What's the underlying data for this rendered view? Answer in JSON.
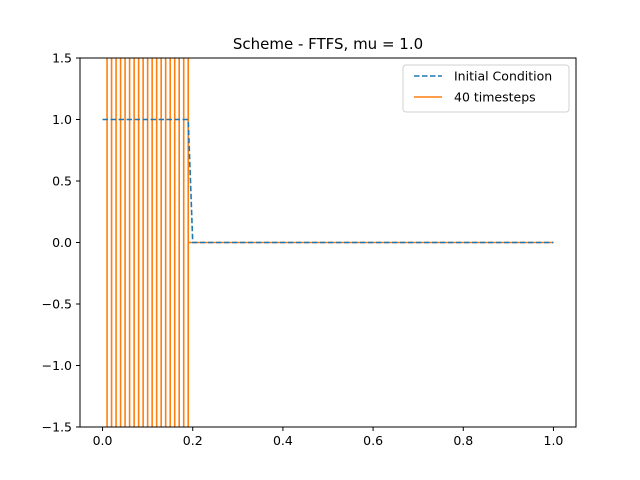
{
  "chart_data": {
    "type": "line",
    "title": "Scheme - FTFS, mu = 1.0",
    "xlabel": "",
    "ylabel": "",
    "xlim": [
      -0.05,
      1.05
    ],
    "ylim": [
      -1.5,
      1.5
    ],
    "xticks": [
      0.0,
      0.2,
      0.4,
      0.6,
      0.8,
      1.0
    ],
    "xtick_labels": [
      "0.0",
      "0.2",
      "0.4",
      "0.6",
      "0.8",
      "1.0"
    ],
    "yticks": [
      -1.5,
      -1.0,
      -0.5,
      0.0,
      0.5,
      1.0,
      1.5
    ],
    "ytick_labels": [
      "−1.5",
      "−1.0",
      "−0.5",
      "0.0",
      "0.5",
      "1.0",
      "1.5"
    ],
    "grid": false,
    "legend_position": "top-right",
    "series": [
      {
        "name": "Initial Condition",
        "style": "dashed",
        "color": "#1f77b4",
        "x": [
          0.0,
          0.19,
          0.2,
          1.0
        ],
        "y": [
          1.0,
          1.0,
          0.0,
          0.0
        ]
      },
      {
        "name": "40 timesteps",
        "style": "solid",
        "color": "#ff7f0e",
        "oscillation_x": [
          0.01,
          0.02,
          0.03,
          0.04,
          0.05,
          0.06,
          0.07,
          0.08,
          0.09,
          0.1,
          0.11,
          0.12,
          0.13,
          0.14,
          0.15,
          0.16,
          0.17,
          0.18,
          0.19
        ],
        "oscillation_range": "exceeds ylim",
        "x": [
          0.2,
          1.0
        ],
        "y": [
          0.0,
          0.0
        ]
      }
    ]
  }
}
